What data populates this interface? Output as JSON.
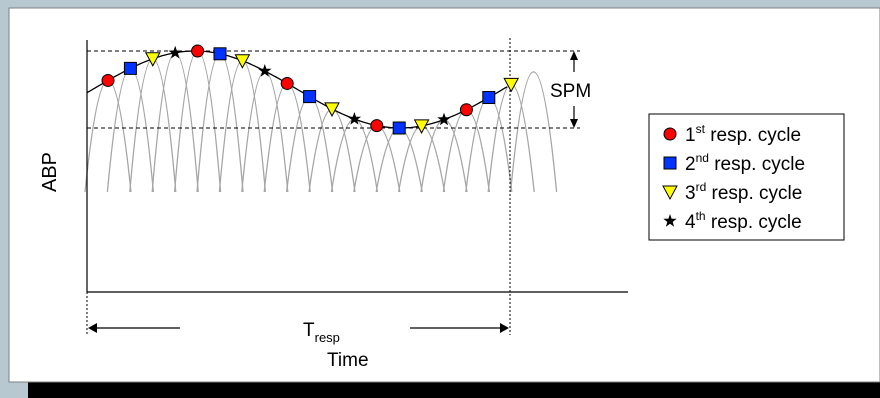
{
  "diagram": {
    "y_axis_label": "ABP",
    "x_axis_label": "Time",
    "period_label": "T",
    "period_label_sub": "resp",
    "spm_label": "SPM"
  },
  "legend": {
    "items": [
      {
        "marker": "circle",
        "color": "#ff0000",
        "num": "1",
        "sup": "st",
        "text": " resp. cycle"
      },
      {
        "marker": "square",
        "color": "#0033ff",
        "num": "2",
        "sup": "nd",
        "text": " resp. cycle"
      },
      {
        "marker": "triangle",
        "color": "#ffff00",
        "num": "3",
        "sup": "rd",
        "text": " resp. cycle"
      },
      {
        "marker": "star",
        "color": "#000000",
        "num": "4",
        "sup": "th",
        "text": " resp. cycle"
      }
    ]
  },
  "colors": {
    "panel_background": "#ffffff",
    "outer_background": "#b7c8d0",
    "pulse_curves": "#a6a6a6",
    "envelope": "#000000"
  }
}
